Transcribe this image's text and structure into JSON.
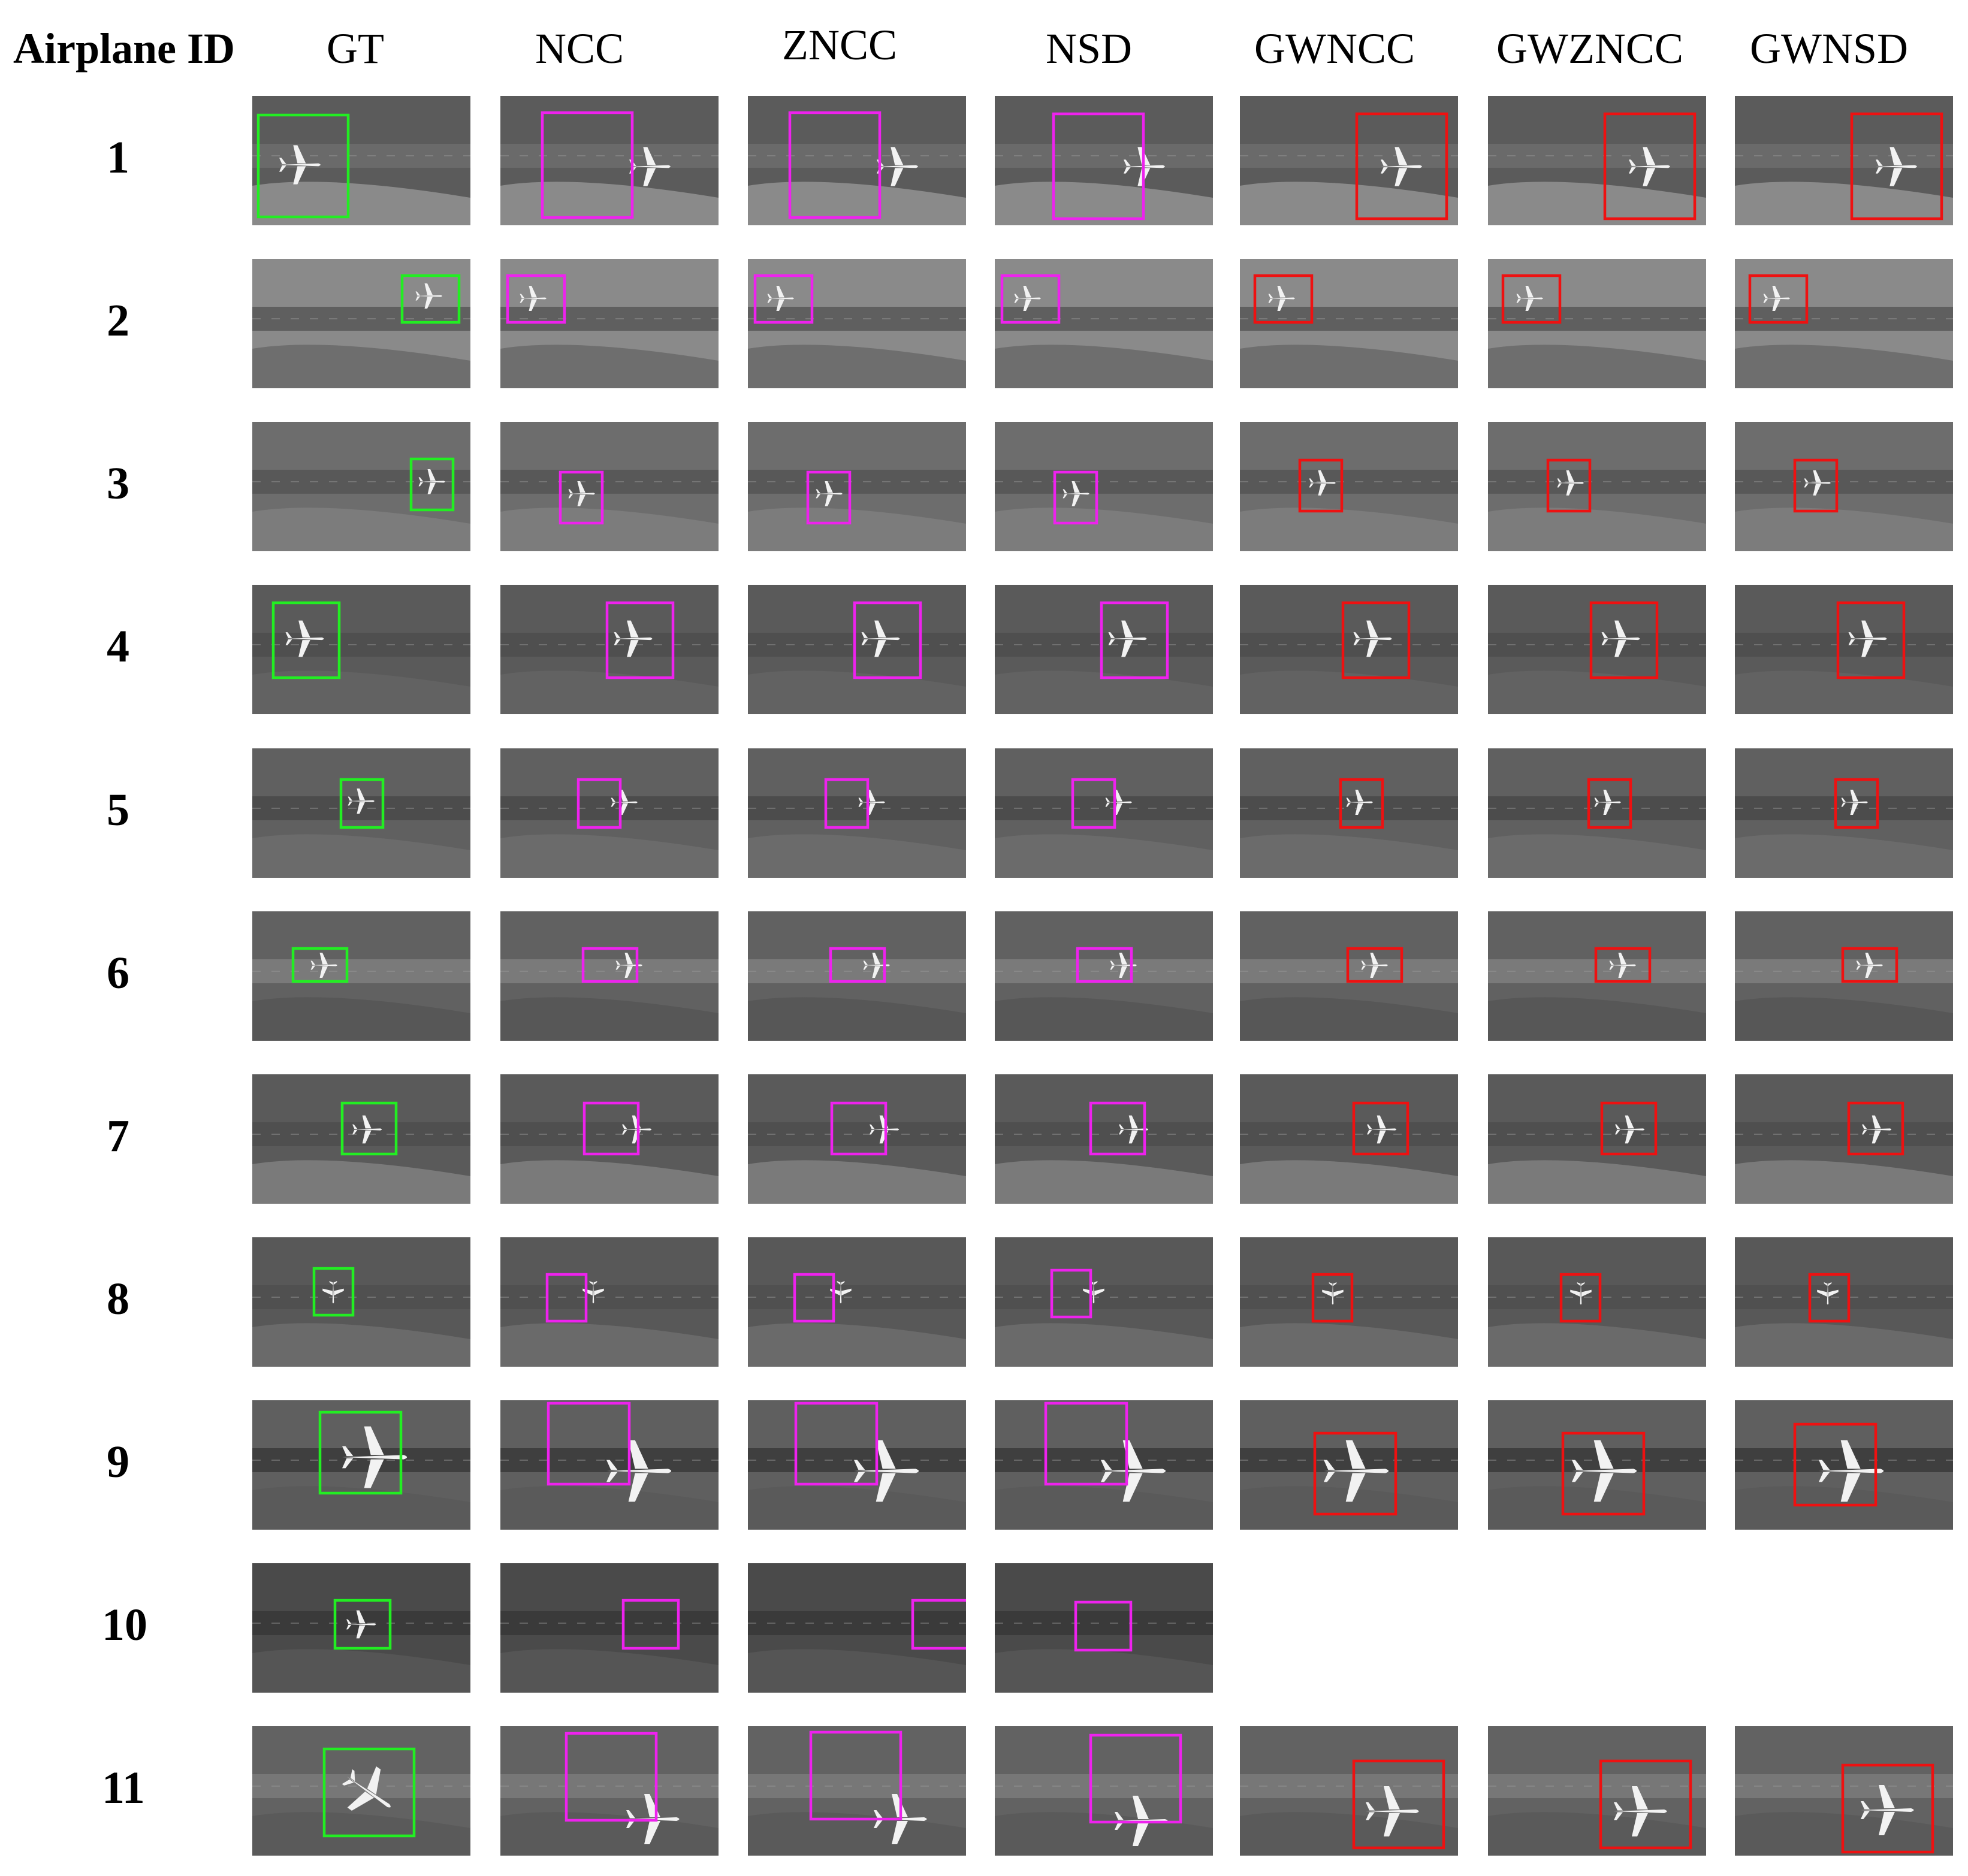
{
  "header": {
    "row_label": "Airplane ID",
    "columns": [
      "GT",
      "NCC",
      "ZNCC",
      "NSD",
      "GWNCC",
      "GWZNCC",
      "GWNSD"
    ]
  },
  "rows": [
    "1",
    "2",
    "3",
    "4",
    "5",
    "6",
    "7",
    "8",
    "9",
    "10",
    "11"
  ],
  "colors": {
    "ground_truth_box": "#22ee22",
    "baseline_box": "#ee22ee",
    "proposed_box": "#ee1111"
  }
}
